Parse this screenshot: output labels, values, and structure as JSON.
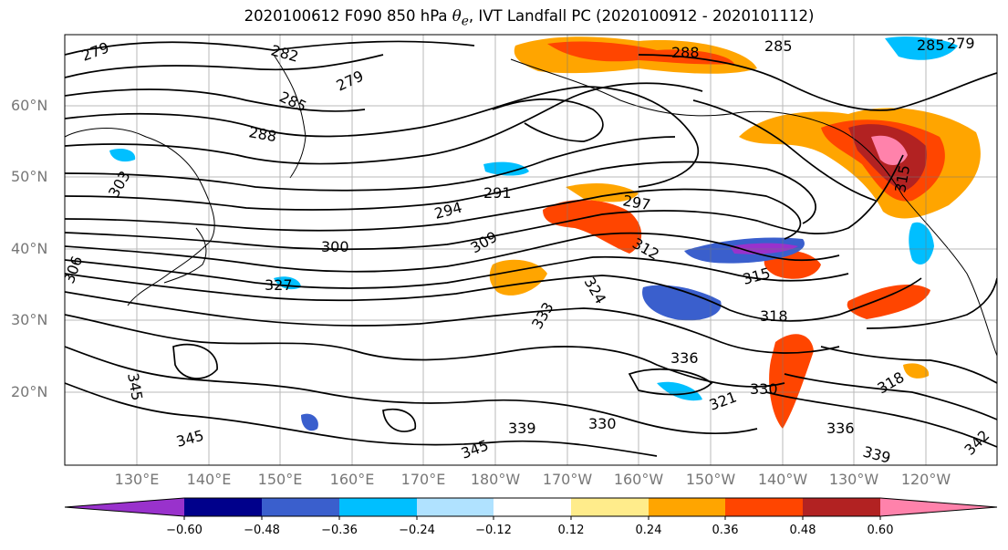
{
  "title": {
    "prefix": "2020100612 F090 850 hPa ",
    "theta": "θ",
    "sub": "e",
    "suffix": ", IVT Landfall PC (2020100912 - 2020101112)"
  },
  "map": {
    "lat_labels": [
      "60°N",
      "50°N",
      "40°N",
      "30°N",
      "20°N"
    ],
    "lon_labels": [
      "130°E",
      "140°E",
      "150°E",
      "160°E",
      "170°E",
      "180°W",
      "170°W",
      "160°W",
      "150°W",
      "140°W",
      "130°W",
      "120°W"
    ],
    "contour_labels": [
      "279",
      "282",
      "279",
      "285",
      "288",
      "288",
      "285",
      "285",
      "279",
      "291",
      "294",
      "297",
      "300",
      "303",
      "306",
      "309",
      "312",
      "315",
      "318",
      "321",
      "324",
      "327",
      "330",
      "333",
      "336",
      "339",
      "342",
      "345",
      "345",
      "345",
      "336",
      "330",
      "339",
      "318",
      "315"
    ]
  },
  "colorbar": {
    "colors": [
      "#9932cc",
      "#00008b",
      "#3a5fcd",
      "#00bfff",
      "#b0e2ff",
      "#ffffff",
      "#ffec8b",
      "#ffa500",
      "#ff4500",
      "#b22222",
      "#ff82ab"
    ],
    "tick_labels": [
      "−0.60",
      "−0.48",
      "−0.36",
      "−0.24",
      "−0.12",
      "0.12",
      "0.24",
      "0.36",
      "0.48",
      "0.60"
    ]
  },
  "chart_data": {
    "type": "heatmap",
    "title": "2020100612 F090 850 hPa θe, IVT Landfall PC (2020100912 - 2020101112)",
    "x_ticks": [
      "130°E",
      "140°E",
      "150°E",
      "160°E",
      "170°E",
      "180°W",
      "170°W",
      "160°W",
      "150°W",
      "140°W",
      "130°W",
      "120°W"
    ],
    "y_ticks": [
      "60°N",
      "50°N",
      "40°N",
      "30°N",
      "20°N"
    ],
    "colorbar_levels": [
      -0.6,
      -0.48,
      -0.36,
      -0.24,
      -0.12,
      0.12,
      0.24,
      0.36,
      0.48,
      0.6
    ],
    "contour_values": [
      279,
      282,
      285,
      288,
      291,
      294,
      297,
      300,
      303,
      306,
      309,
      312,
      315,
      318,
      321,
      324,
      327,
      330,
      333,
      336,
      339,
      342,
      345
    ],
    "grid": true,
    "colorbar_placement": "bottom"
  }
}
